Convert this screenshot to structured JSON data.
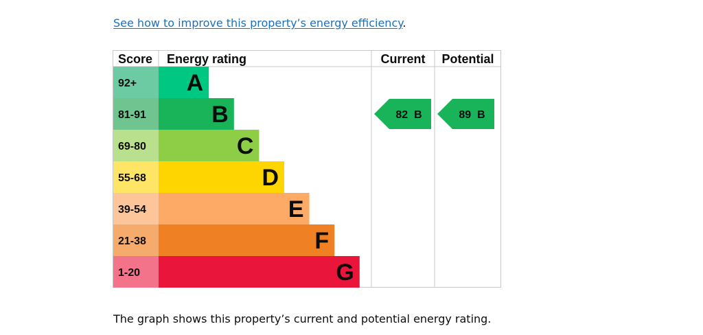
{
  "links": {
    "improve_text": "See how to improve this property’s energy efficiency",
    "improve_suffix": "."
  },
  "chart_data": {
    "type": "table",
    "headers": {
      "score": "Score",
      "energy_rating": "Energy rating",
      "current": "Current",
      "potential": "Potential"
    },
    "bands": [
      {
        "score": "92+",
        "letter": "A",
        "color": "#00c781",
        "score_color": "#6ccba3"
      },
      {
        "score": "81-91",
        "letter": "B",
        "color": "#19b459",
        "score_color": "#6fc48f"
      },
      {
        "score": "69-80",
        "letter": "C",
        "color": "#8dce46",
        "score_color": "#b9e08c"
      },
      {
        "score": "55-68",
        "letter": "D",
        "color": "#ffd500",
        "score_color": "#ffe566"
      },
      {
        "score": "39-54",
        "letter": "E",
        "color": "#fcaa65",
        "score_color": "#fdc59a"
      },
      {
        "score": "21-38",
        "letter": "F",
        "color": "#ef8023",
        "score_color": "#f5ab6c"
      },
      {
        "score": "1-20",
        "letter": "G",
        "color": "#e9153b",
        "score_color": "#f2738a"
      }
    ],
    "current": {
      "value": 82,
      "band": "B",
      "label": "82  B"
    },
    "potential": {
      "value": 89,
      "band": "B",
      "label": "89  B"
    }
  },
  "caption": "The graph shows this property’s current and potential energy rating."
}
